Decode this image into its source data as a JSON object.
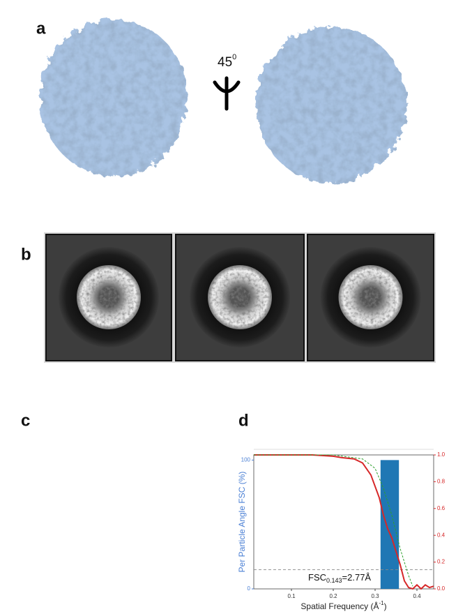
{
  "panels": {
    "a": {
      "label": "a",
      "rotation_angle": "45",
      "rotation_unit": "0"
    },
    "b": {
      "label": "b"
    },
    "c": {
      "label": "c"
    },
    "d": {
      "label": "d"
    }
  },
  "chart_data": {
    "type": "line",
    "ylabel": "Per Particle Angle FSC (%)",
    "xlabel": {
      "text": "Spatial Frequency (Å",
      "sup": "-1",
      "end": ")"
    },
    "xlim": [
      0.01,
      0.44
    ],
    "xticks": [
      0.1,
      0.2,
      0.3,
      0.4
    ],
    "ylim": [
      0,
      104
    ],
    "yticks": [
      0,
      100
    ],
    "y2lim": [
      0,
      1
    ],
    "y2ticks": [
      {
        "value": 0,
        "label": "0.0"
      },
      {
        "value": 0.2,
        "label": "0.2"
      },
      {
        "value": 0.4,
        "label": "0.4"
      },
      {
        "value": 0.6,
        "label": "0.6"
      },
      {
        "value": 0.8,
        "label": "0.8"
      },
      {
        "value": 1,
        "label": "1.0"
      }
    ],
    "bars": {
      "bins": [
        0.313,
        0.357
      ],
      "values": [
        100
      ],
      "color": "#1f77b4"
    },
    "series": [
      {
        "axis": "y2",
        "color": "#d62728",
        "dashed": false,
        "x": [
          0.01,
          0.15,
          0.2,
          0.22,
          0.25,
          0.27,
          0.29,
          0.31,
          0.32,
          0.33,
          0.34,
          0.35,
          0.36,
          0.37,
          0.38,
          0.39,
          0.4,
          0.41,
          0.42,
          0.43,
          0.44
        ],
        "values": [
          1.0,
          1.0,
          0.99,
          0.98,
          0.97,
          0.94,
          0.85,
          0.68,
          0.55,
          0.45,
          0.38,
          0.28,
          0.18,
          0.06,
          0.01,
          0.0,
          0.03,
          0.0,
          0.03,
          0.01,
          0.02
        ]
      },
      {
        "axis": "y2",
        "color": "#2ca02c",
        "dashed": true,
        "x": [
          0.01,
          0.2,
          0.27,
          0.3,
          0.32,
          0.34,
          0.36,
          0.38,
          0.39
        ],
        "values": [
          1.0,
          1.0,
          0.97,
          0.9,
          0.75,
          0.55,
          0.3,
          0.1,
          0.02
        ]
      }
    ],
    "hline": {
      "value": 0.143,
      "axis": "y2"
    },
    "annotation": {
      "text": "FSC",
      "sub": "0.143",
      "suffix": "=2.77Å"
    }
  }
}
